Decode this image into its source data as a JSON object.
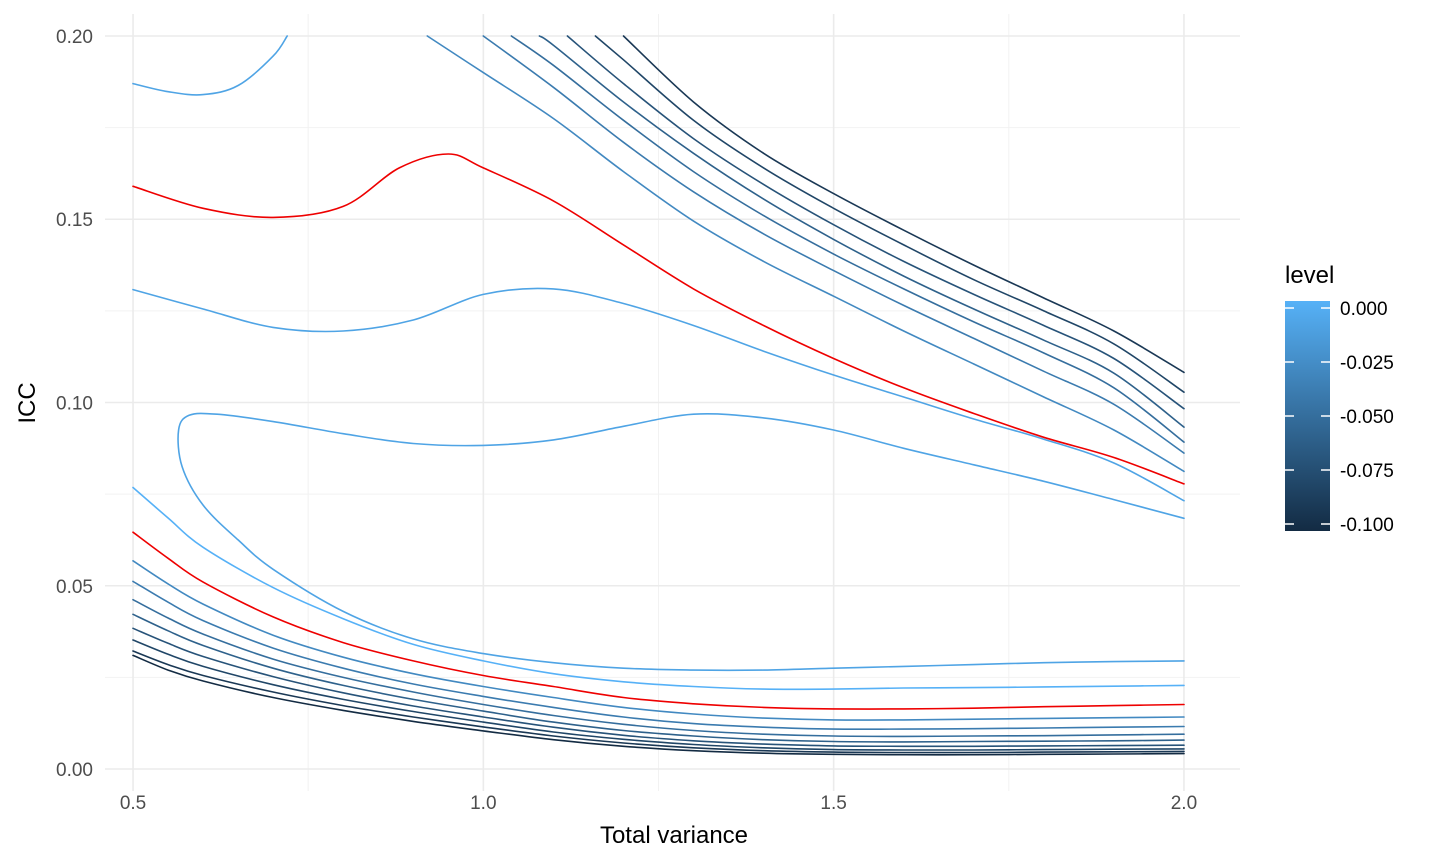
{
  "chart_data": {
    "type": "line",
    "subtype": "contour",
    "xlabel": "Total variance",
    "ylabel": "ICC",
    "xlim": [
      0.46,
      2.08
    ],
    "ylim": [
      -0.006,
      0.206
    ],
    "x_ticks": [
      0.5,
      1.0,
      1.5,
      2.0
    ],
    "x_tick_labels": [
      "0.5",
      "1.0",
      "1.5",
      "2.0"
    ],
    "x_minor_breaks": [
      0.75,
      1.25,
      1.75
    ],
    "y_ticks": [
      0.0,
      0.05,
      0.1,
      0.15,
      0.2
    ],
    "y_tick_labels": [
      "0.00",
      "0.05",
      "0.10",
      "0.15",
      "0.20"
    ],
    "y_minor_breaks": [
      0.025,
      0.075,
      0.125,
      0.175
    ],
    "grid": true,
    "legend": {
      "title": "level",
      "position": "right",
      "type": "colorbar",
      "range": [
        -0.1,
        0.0
      ],
      "breaks": [
        0.0,
        -0.025,
        -0.05,
        -0.075,
        -0.1
      ],
      "labels": [
        "0.000",
        "-0.025",
        "-0.050",
        "-0.075",
        "-0.100"
      ],
      "color_low": "#132b43",
      "color_high": "#56b1f7"
    },
    "highlight_color": "#ee0000",
    "series": [
      {
        "level": -0.01,
        "x": [
          0.5,
          0.55,
          0.6,
          0.65,
          0.7,
          0.72
        ],
        "y": [
          0.187,
          0.1848,
          0.184,
          0.1865,
          0.1945,
          0.2
        ]
      },
      {
        "level": -0.02,
        "x": [
          0.5,
          0.6,
          0.7,
          0.8,
          0.88,
          0.95,
          1.0,
          1.1,
          1.2,
          1.3,
          1.4,
          1.5,
          1.6,
          1.7,
          1.8,
          1.9,
          2.0
        ],
        "y": [
          0.159,
          0.153,
          0.1505,
          0.1535,
          0.164,
          0.1678,
          0.164,
          0.155,
          0.143,
          0.131,
          0.121,
          0.112,
          0.104,
          0.097,
          0.0905,
          0.085,
          0.0778
        ],
        "highlight": true
      },
      {
        "level": -0.01,
        "x": [
          0.5,
          0.6,
          0.7,
          0.8,
          0.9,
          1.0,
          1.1,
          1.2,
          1.3,
          1.4,
          1.5,
          1.6,
          1.7,
          1.8,
          1.9,
          2.0
        ],
        "y": [
          0.1308,
          0.1255,
          0.1205,
          0.1195,
          0.1225,
          0.1295,
          0.131,
          0.127,
          0.121,
          0.114,
          0.1075,
          0.1015,
          0.0955,
          0.09,
          0.0835,
          0.0732
        ]
      },
      {
        "level": -0.01,
        "x": [
          2.0,
          1.9,
          1.8,
          1.7,
          1.6,
          1.5,
          1.4,
          1.3,
          1.2,
          1.1,
          1.0,
          0.9,
          0.8,
          0.7,
          0.62,
          0.58,
          0.565,
          0.57,
          0.6,
          0.65,
          0.7,
          0.8,
          0.9,
          1.0,
          1.1,
          1.2,
          1.3,
          1.4,
          1.5,
          1.6,
          1.7,
          1.8,
          1.9,
          2.0
        ],
        "y": [
          0.0684,
          0.0735,
          0.0785,
          0.083,
          0.0875,
          0.0925,
          0.0958,
          0.0968,
          0.0935,
          0.0898,
          0.0883,
          0.0888,
          0.0915,
          0.0948,
          0.0968,
          0.0965,
          0.0925,
          0.0825,
          0.072,
          0.0625,
          0.0545,
          0.043,
          0.0355,
          0.0315,
          0.029,
          0.0275,
          0.027,
          0.027,
          0.0275,
          0.028,
          0.0285,
          0.029,
          0.0293,
          0.0295
        ]
      },
      {
        "level": 0.0,
        "x": [
          0.5,
          0.55,
          0.6,
          0.7,
          0.8,
          0.9,
          1.0,
          1.1,
          1.2,
          1.3,
          1.4,
          1.5,
          1.6,
          1.7,
          1.8,
          1.9,
          2.0
        ],
        "y": [
          0.0768,
          0.0685,
          0.0605,
          0.0495,
          0.041,
          0.034,
          0.0295,
          0.026,
          0.0238,
          0.0225,
          0.0218,
          0.0218,
          0.0221,
          0.0222,
          0.0224,
          0.0226,
          0.0228
        ]
      },
      {
        "level": -0.02,
        "x": [
          0.5,
          0.55,
          0.6,
          0.7,
          0.8,
          0.9,
          1.0,
          1.1,
          1.2,
          1.3,
          1.4,
          1.5,
          1.6,
          1.7,
          1.8,
          1.9,
          2.0
        ],
        "y": [
          0.0646,
          0.0575,
          0.051,
          0.0415,
          0.0345,
          0.0295,
          0.0255,
          0.0225,
          0.0195,
          0.0178,
          0.0168,
          0.0164,
          0.0164,
          0.0166,
          0.017,
          0.0173,
          0.0176
        ],
        "highlight": true
      },
      {
        "level": -0.03,
        "x": [
          0.5,
          0.55,
          0.6,
          0.7,
          0.8,
          0.9,
          1.0,
          1.1,
          1.2,
          1.3,
          1.4,
          1.5,
          1.6,
          1.7,
          1.8,
          1.9,
          2.0
        ],
        "y": [
          0.0568,
          0.0505,
          0.045,
          0.0365,
          0.0305,
          0.026,
          0.0225,
          0.0195,
          0.0168,
          0.015,
          0.0139,
          0.0134,
          0.0134,
          0.0136,
          0.0138,
          0.014,
          0.0142
        ]
      },
      {
        "level": -0.04,
        "x": [
          0.5,
          0.55,
          0.6,
          0.7,
          0.8,
          0.9,
          1.0,
          1.1,
          1.2,
          1.3,
          1.4,
          1.5,
          1.6,
          1.7,
          1.8,
          1.9,
          2.0
        ],
        "y": [
          0.0512,
          0.0455,
          0.0405,
          0.033,
          0.0275,
          0.0232,
          0.0198,
          0.0168,
          0.0142,
          0.0124,
          0.0114,
          0.0109,
          0.0109,
          0.011,
          0.0112,
          0.0114,
          0.0116
        ]
      },
      {
        "level": -0.05,
        "x": [
          0.5,
          0.55,
          0.6,
          0.7,
          0.8,
          0.9,
          1.0,
          1.1,
          1.2,
          1.3,
          1.4,
          1.5,
          1.6,
          1.7,
          1.8,
          1.9,
          2.0
        ],
        "y": [
          0.0462,
          0.0412,
          0.0368,
          0.03,
          0.025,
          0.021,
          0.0176,
          0.0146,
          0.0122,
          0.0105,
          0.0095,
          0.009,
          0.0089,
          0.009,
          0.0091,
          0.0093,
          0.0095
        ]
      },
      {
        "level": -0.06,
        "x": [
          0.5,
          0.55,
          0.6,
          0.7,
          0.8,
          0.9,
          1.0,
          1.1,
          1.2,
          1.3,
          1.4,
          1.5,
          1.6,
          1.7,
          1.8,
          1.9,
          2.0
        ],
        "y": [
          0.0422,
          0.0377,
          0.0337,
          0.0275,
          0.0228,
          0.019,
          0.0158,
          0.0128,
          0.0105,
          0.009,
          0.008,
          0.0075,
          0.0074,
          0.0075,
          0.0076,
          0.0077,
          0.0079
        ]
      },
      {
        "level": -0.07,
        "x": [
          0.5,
          0.55,
          0.6,
          0.7,
          0.8,
          0.9,
          1.0,
          1.1,
          1.2,
          1.3,
          1.4,
          1.5,
          1.6,
          1.7,
          1.8,
          1.9,
          2.0
        ],
        "y": [
          0.0384,
          0.0343,
          0.0307,
          0.0252,
          0.0208,
          0.0172,
          0.0142,
          0.0114,
          0.0092,
          0.0077,
          0.0068,
          0.0063,
          0.0062,
          0.0062,
          0.0063,
          0.0064,
          0.0065
        ]
      },
      {
        "level": -0.08,
        "x": [
          0.5,
          0.55,
          0.6,
          0.7,
          0.8,
          0.9,
          1.0,
          1.1,
          1.2,
          1.3,
          1.4,
          1.5,
          1.6,
          1.7,
          1.8,
          1.9,
          2.0
        ],
        "y": [
          0.0352,
          0.0313,
          0.028,
          0.023,
          0.019,
          0.0157,
          0.0128,
          0.0101,
          0.0081,
          0.0067,
          0.0058,
          0.0053,
          0.0052,
          0.0052,
          0.0053,
          0.0054,
          0.0055
        ]
      },
      {
        "level": -0.09,
        "x": [
          0.5,
          0.55,
          0.6,
          0.7,
          0.8,
          0.9,
          1.0,
          1.1,
          1.2,
          1.3,
          1.4,
          1.5,
          1.6,
          1.7,
          1.8,
          1.9,
          2.0
        ],
        "y": [
          0.0322,
          0.0285,
          0.0255,
          0.021,
          0.0173,
          0.0142,
          0.0115,
          0.009,
          0.0071,
          0.0058,
          0.005,
          0.0046,
          0.0045,
          0.0045,
          0.0046,
          0.0047,
          0.0048
        ]
      },
      {
        "level": -0.1,
        "x": [
          0.5,
          0.55,
          0.6,
          0.7,
          0.8,
          0.9,
          1.0,
          1.1,
          1.2,
          1.3,
          1.4,
          1.5,
          1.6,
          1.7,
          1.8,
          1.9,
          2.0
        ],
        "y": [
          0.031,
          0.027,
          0.024,
          0.0195,
          0.016,
          0.013,
          0.0104,
          0.008,
          0.0062,
          0.005,
          0.0043,
          0.004,
          0.0039,
          0.0039,
          0.004,
          0.0041,
          0.0042
        ]
      },
      {
        "level": -0.03,
        "x": [
          0.92,
          1.0,
          1.1,
          1.2,
          1.3,
          1.4,
          1.5,
          1.6,
          1.7,
          1.8,
          1.9,
          2.0
        ],
        "y": [
          0.2,
          0.19,
          0.1775,
          0.163,
          0.1495,
          0.1385,
          0.129,
          0.1195,
          0.1105,
          0.1015,
          0.0925,
          0.0812
        ]
      },
      {
        "level": -0.04,
        "x": [
          1.0,
          1.1,
          1.2,
          1.3,
          1.4,
          1.5,
          1.6,
          1.7,
          1.8,
          1.9,
          2.0
        ],
        "y": [
          0.2,
          0.186,
          0.171,
          0.1575,
          0.146,
          0.136,
          0.1265,
          0.1175,
          0.1085,
          0.0995,
          0.0862
        ]
      },
      {
        "level": -0.05,
        "x": [
          1.04,
          1.1,
          1.2,
          1.3,
          1.4,
          1.5,
          1.6,
          1.7,
          1.8,
          1.9,
          2.0
        ],
        "y": [
          0.2,
          0.192,
          0.177,
          0.163,
          0.151,
          0.1405,
          0.131,
          0.122,
          0.1135,
          0.104,
          0.0892
        ]
      },
      {
        "level": -0.06,
        "x": [
          1.08,
          1.1,
          1.2,
          1.3,
          1.4,
          1.5,
          1.6,
          1.7,
          1.8,
          1.9,
          2.0
        ],
        "y": [
          0.2,
          0.1975,
          0.182,
          0.168,
          0.1555,
          0.1445,
          0.1345,
          0.1255,
          0.117,
          0.108,
          0.0933
        ]
      },
      {
        "level": -0.07,
        "x": [
          1.12,
          1.2,
          1.3,
          1.4,
          1.5,
          1.6,
          1.7,
          1.8,
          1.9,
          2.0
        ],
        "y": [
          0.2,
          0.187,
          0.172,
          0.1595,
          0.1485,
          0.1385,
          0.1295,
          0.121,
          0.112,
          0.0983
        ]
      },
      {
        "level": -0.08,
        "x": [
          1.16,
          1.2,
          1.3,
          1.4,
          1.5,
          1.6,
          1.7,
          1.8,
          1.9,
          2.0
        ],
        "y": [
          0.2,
          0.1935,
          0.177,
          0.164,
          0.153,
          0.143,
          0.1335,
          0.125,
          0.116,
          0.1028
        ]
      },
      {
        "level": -0.09,
        "x": [
          1.2,
          1.3,
          1.4,
          1.5,
          1.6,
          1.7,
          1.8,
          1.9,
          2.0
        ],
        "y": [
          0.2,
          0.182,
          0.168,
          0.157,
          0.147,
          0.1375,
          0.1285,
          0.1195,
          0.1082
        ]
      }
    ]
  }
}
